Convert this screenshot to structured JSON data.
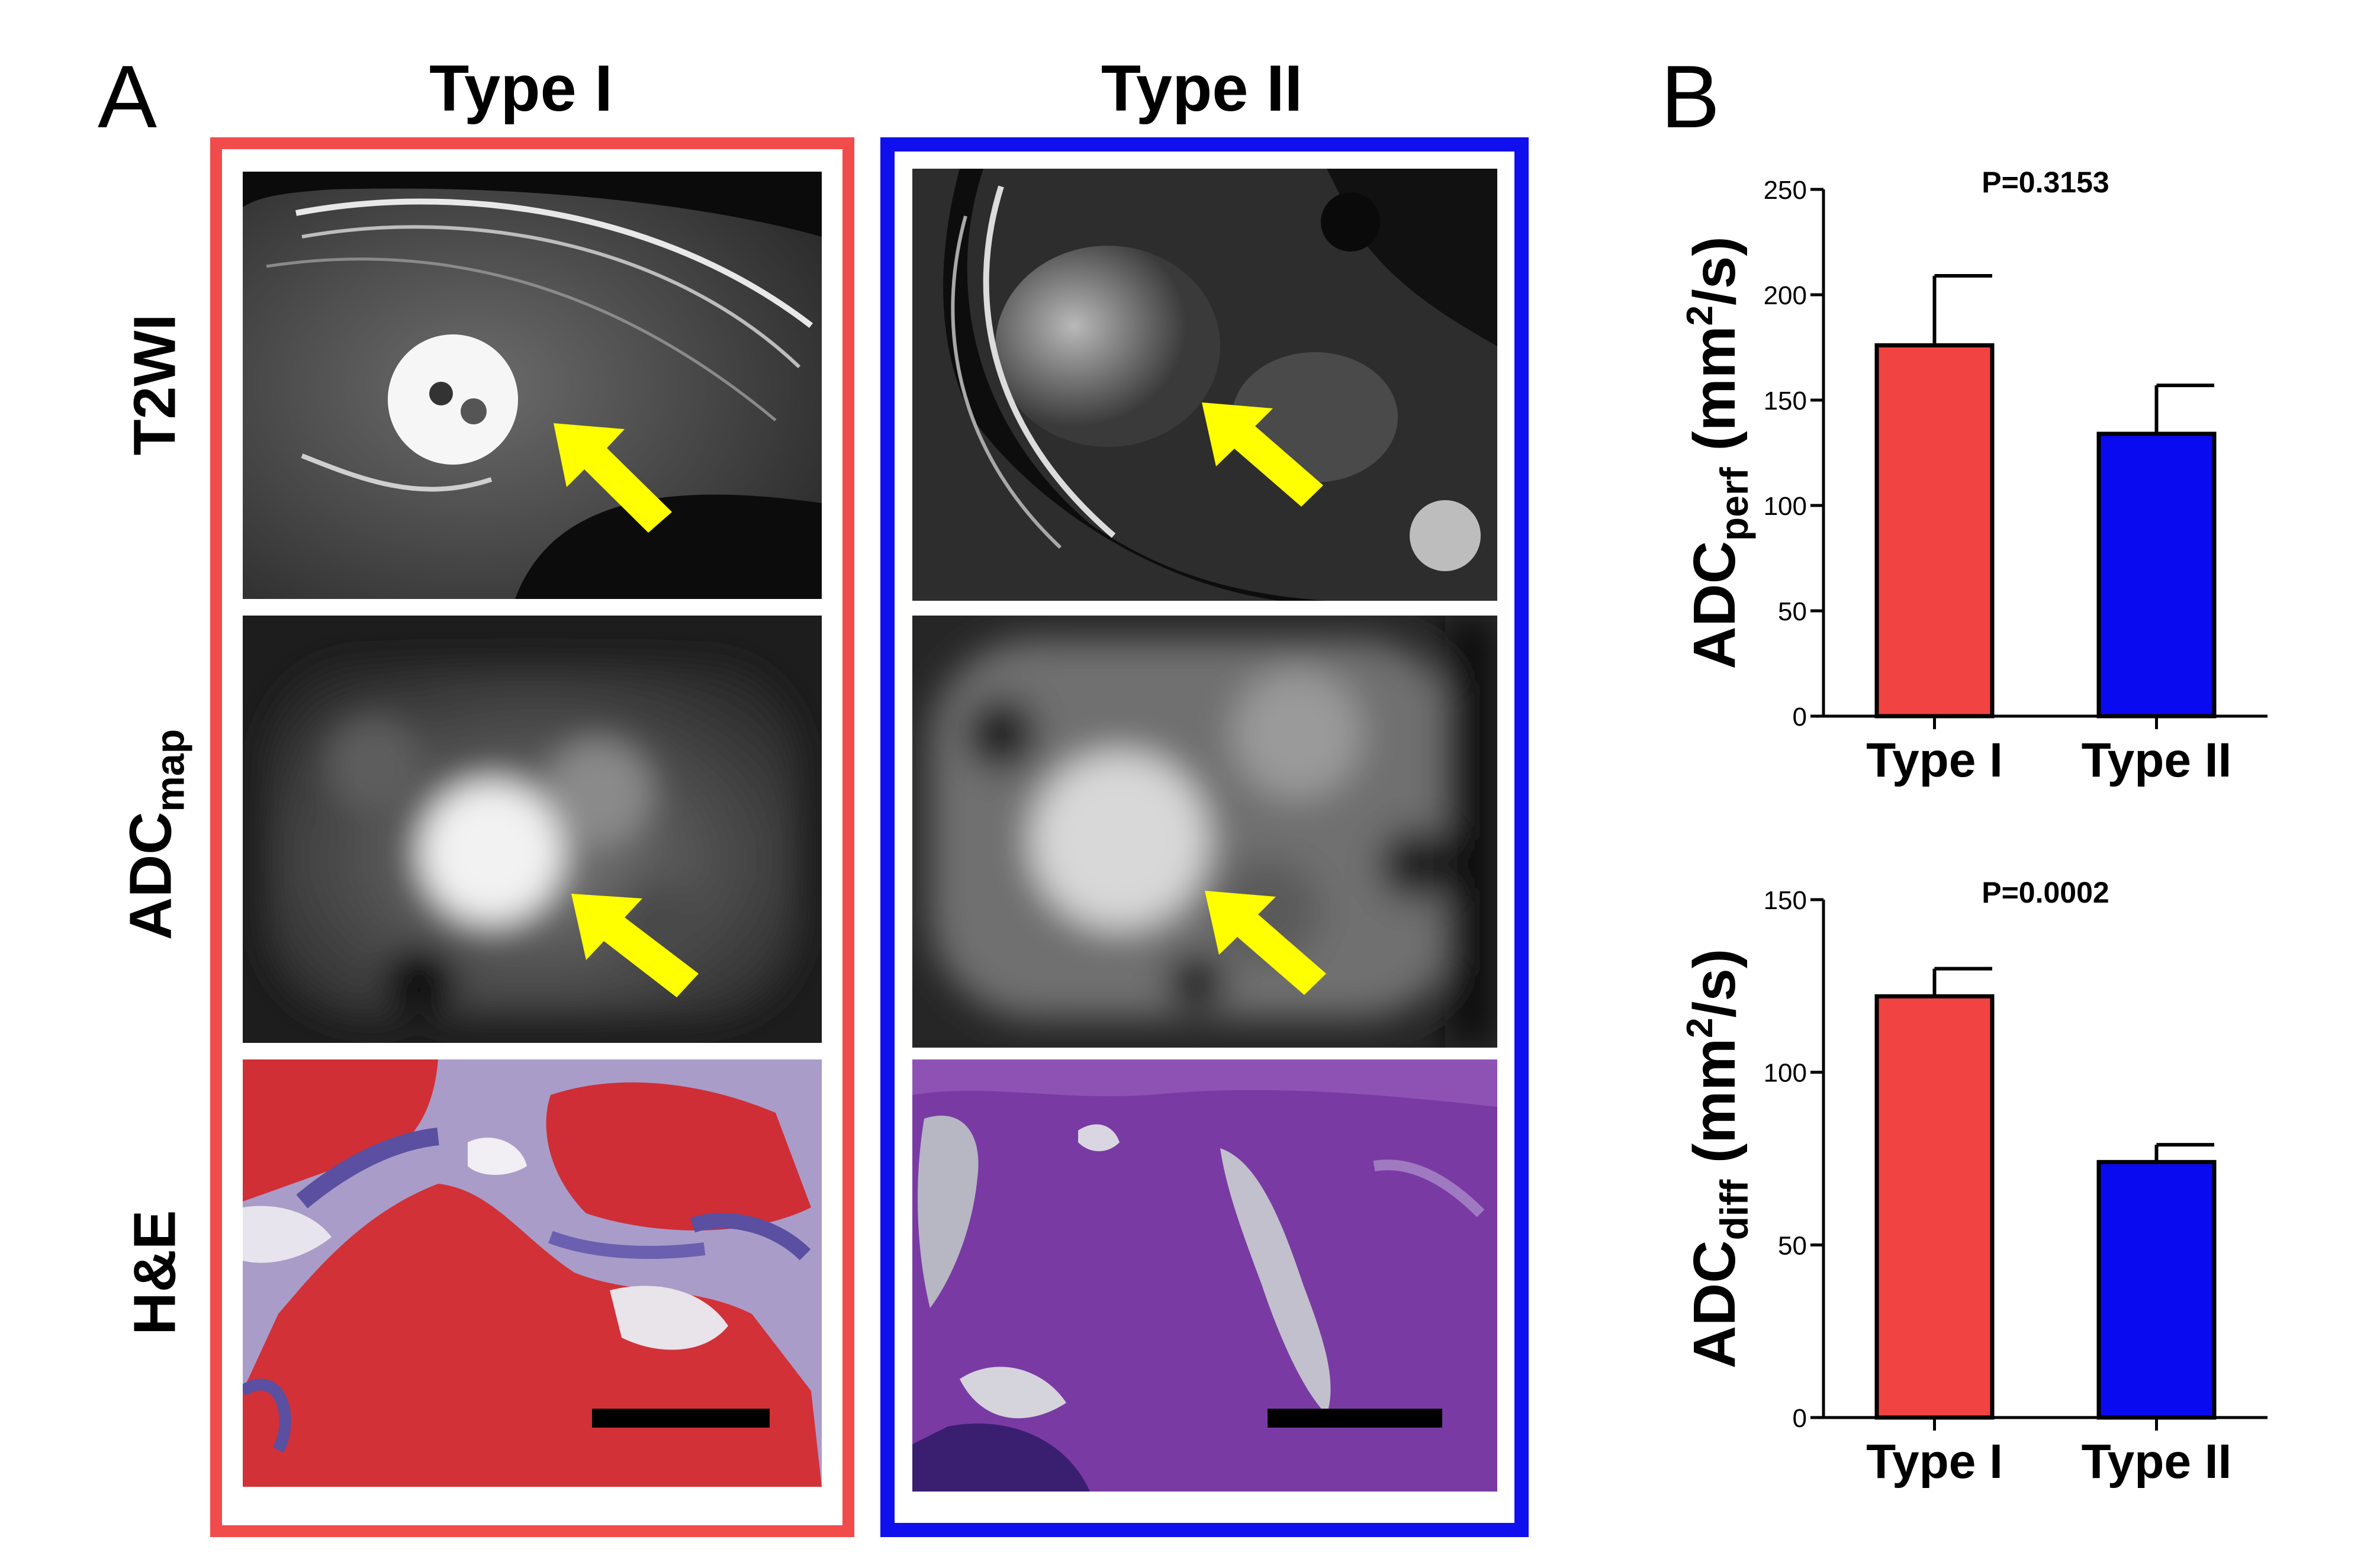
{
  "panel_a": {
    "letter": "A",
    "columns": [
      {
        "title": "Type I",
        "frame_color": "#F24B4B"
      },
      {
        "title": "Type II",
        "frame_color": "#1010EE"
      }
    ],
    "rows": [
      {
        "label": "T2WI"
      },
      {
        "label_main": "ADC",
        "label_sub": "map"
      },
      {
        "label": "H&E"
      }
    ],
    "icons": {
      "pointer": "arrow-icon",
      "scale_bar": "scale-bar"
    },
    "arrow_color": "#FFFF00"
  },
  "panel_b": {
    "letter": "B"
  },
  "chart_data": [
    {
      "type": "bar",
      "categories": [
        "Type I",
        "Type II"
      ],
      "values": [
        176,
        134
      ],
      "errors": [
        33,
        23
      ],
      "colors": [
        "#F24343",
        "#0A0AF0"
      ],
      "annotation": "P=0.3153",
      "ylabel_main": "ADC",
      "ylabel_sub": "perf",
      "ylabel_unit_pre": " (mm",
      "ylabel_unit_sup": "2",
      "ylabel_unit_post": "/s)",
      "ylim": [
        0,
        250
      ],
      "yticks": [
        "0",
        "50",
        "100",
        "150",
        "200",
        "250"
      ]
    },
    {
      "type": "bar",
      "categories": [
        "Type I",
        "Type II"
      ],
      "values": [
        122,
        74
      ],
      "errors": [
        8,
        5
      ],
      "colors": [
        "#F24343",
        "#0A0AF0"
      ],
      "annotation": "P=0.0002",
      "ylabel_main": "ADC",
      "ylabel_sub": "diff",
      "ylabel_unit_pre": " (mm",
      "ylabel_unit_sup": "2",
      "ylabel_unit_post": "/s)",
      "ylim": [
        0,
        150
      ],
      "yticks": [
        "0",
        "50",
        "100",
        "150"
      ]
    }
  ]
}
